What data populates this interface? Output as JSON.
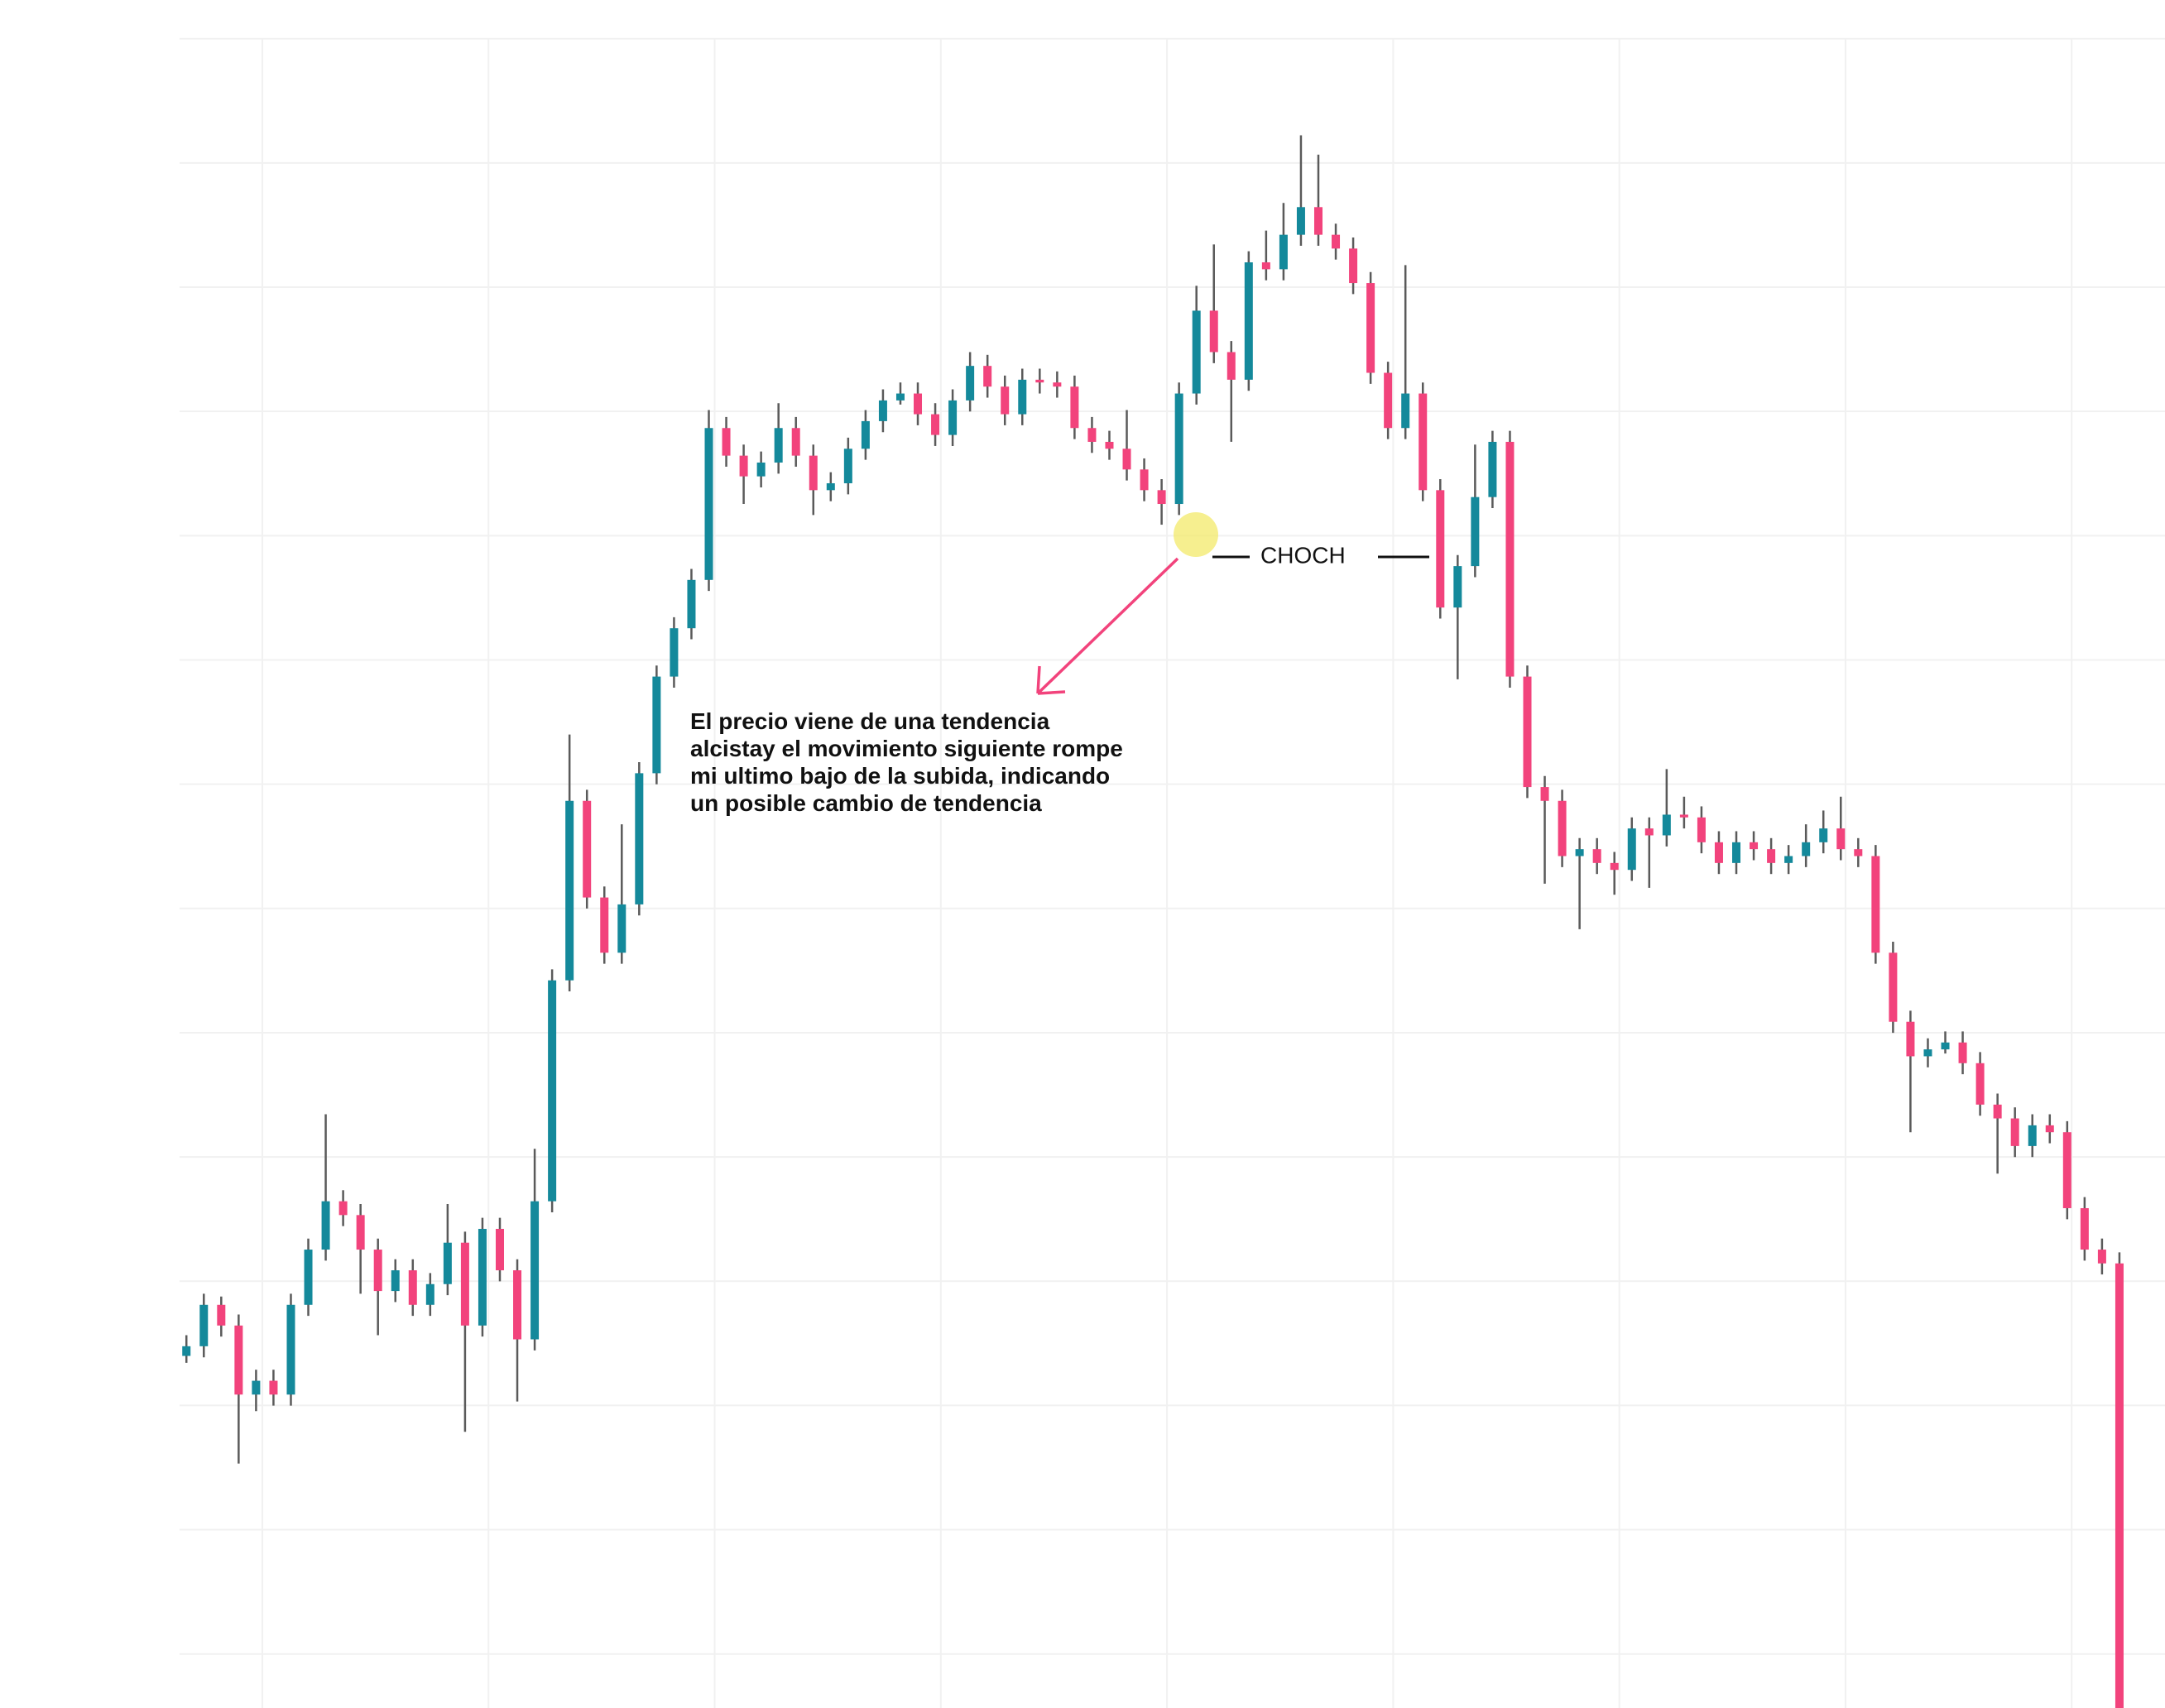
{
  "chart_data": {
    "type": "candlestick",
    "ylim": [
      0,
      1237
    ],
    "up_color": "#14899b",
    "down_color": "#f2437c",
    "wick_color": "#5a5a5a",
    "grid": true,
    "annotation_label": "CHOCH",
    "annotation_text": [
      "El precio viene de una tendencia",
      "alcistay el movimiento siguiente rompe",
      "mi ultimo bajo de la subida, indicando",
      "un posible cambio de tendencia"
    ],
    "candles": [
      [
        255,
        270,
        250,
        262
      ],
      [
        262,
        300,
        254,
        292
      ],
      [
        292,
        298,
        269,
        277
      ],
      [
        277,
        285,
        177,
        227
      ],
      [
        227,
        245,
        215,
        237
      ],
      [
        237,
        245,
        219,
        227
      ],
      [
        227,
        300,
        219,
        292
      ],
      [
        292,
        340,
        284,
        332
      ],
      [
        332,
        430,
        324,
        367
      ],
      [
        367,
        375,
        349,
        357
      ],
      [
        357,
        365,
        300,
        332
      ],
      [
        332,
        340,
        270,
        302
      ],
      [
        302,
        325,
        294,
        317
      ],
      [
        317,
        325,
        284,
        292
      ],
      [
        292,
        315,
        284,
        307
      ],
      [
        307,
        365,
        299,
        337
      ],
      [
        337,
        345,
        200,
        277
      ],
      [
        277,
        355,
        269,
        347
      ],
      [
        347,
        355,
        309,
        317
      ],
      [
        317,
        325,
        222,
        267
      ],
      [
        267,
        405,
        259,
        367
      ],
      [
        367,
        535,
        359,
        527
      ],
      [
        527,
        705,
        519,
        657
      ],
      [
        657,
        665,
        579,
        587
      ],
      [
        587,
        595,
        539,
        547
      ],
      [
        547,
        640,
        539,
        582
      ],
      [
        582,
        685,
        574,
        677
      ],
      [
        677,
        755,
        669,
        747
      ],
      [
        747,
        790,
        739,
        782
      ],
      [
        782,
        825,
        774,
        817
      ],
      [
        817,
        940,
        809,
        927
      ],
      [
        927,
        935,
        899,
        907
      ],
      [
        907,
        915,
        872,
        892
      ],
      [
        892,
        910,
        884,
        902
      ],
      [
        902,
        945,
        894,
        927
      ],
      [
        927,
        935,
        899,
        907
      ],
      [
        907,
        915,
        864,
        882
      ],
      [
        882,
        895,
        874,
        887
      ],
      [
        887,
        920,
        879,
        912
      ],
      [
        912,
        940,
        904,
        932
      ],
      [
        932,
        955,
        924,
        947
      ],
      [
        947,
        960,
        944,
        952
      ],
      [
        952,
        960,
        929,
        937
      ],
      [
        937,
        945,
        914,
        922
      ],
      [
        922,
        955,
        914,
        947
      ],
      [
        947,
        982,
        939,
        972
      ],
      [
        972,
        980,
        949,
        957
      ],
      [
        957,
        965,
        929,
        937
      ],
      [
        937,
        970,
        929,
        962
      ],
      [
        962,
        970,
        952,
        960
      ],
      [
        960,
        968,
        949,
        957
      ],
      [
        957,
        965,
        919,
        927
      ],
      [
        927,
        935,
        909,
        917
      ],
      [
        917,
        925,
        904,
        912
      ],
      [
        912,
        940,
        889,
        897
      ],
      [
        897,
        905,
        874,
        882
      ],
      [
        882,
        890,
        857,
        872
      ],
      [
        872,
        960,
        864,
        952
      ],
      [
        952,
        1030,
        944,
        1012
      ],
      [
        1012,
        1060,
        974,
        982
      ],
      [
        982,
        990,
        917,
        962
      ],
      [
        962,
        1055,
        954,
        1047
      ],
      [
        1047,
        1070,
        1034,
        1042
      ],
      [
        1042,
        1090,
        1034,
        1067
      ],
      [
        1067,
        1139,
        1059,
        1087
      ],
      [
        1087,
        1125,
        1059,
        1067
      ],
      [
        1067,
        1075,
        1049,
        1057
      ],
      [
        1057,
        1065,
        1024,
        1032
      ],
      [
        1032,
        1040,
        959,
        967
      ],
      [
        967,
        975,
        919,
        927
      ],
      [
        927,
        1045,
        919,
        952
      ],
      [
        952,
        960,
        874,
        882
      ],
      [
        882,
        890,
        789,
        797
      ],
      [
        797,
        835,
        745,
        827
      ],
      [
        827,
        915,
        819,
        877
      ],
      [
        877,
        925,
        869,
        917
      ],
      [
        917,
        925,
        739,
        747
      ],
      [
        747,
        755,
        659,
        667
      ],
      [
        667,
        675,
        597,
        657
      ],
      [
        657,
        665,
        609,
        617
      ],
      [
        617,
        630,
        564,
        622
      ],
      [
        622,
        630,
        604,
        612
      ],
      [
        612,
        620,
        589,
        607
      ],
      [
        607,
        645,
        599,
        637
      ],
      [
        637,
        645,
        594,
        632
      ],
      [
        632,
        680,
        624,
        647
      ],
      [
        647,
        660,
        637,
        645
      ],
      [
        645,
        653,
        619,
        627
      ],
      [
        627,
        635,
        604,
        612
      ],
      [
        612,
        635,
        604,
        627
      ],
      [
        627,
        635,
        614,
        622
      ],
      [
        622,
        630,
        604,
        612
      ],
      [
        612,
        625,
        604,
        617
      ],
      [
        617,
        640,
        609,
        627
      ],
      [
        627,
        650,
        619,
        637
      ],
      [
        637,
        660,
        614,
        622
      ],
      [
        622,
        630,
        609,
        617
      ],
      [
        617,
        625,
        539,
        547
      ],
      [
        547,
        555,
        489,
        497
      ],
      [
        497,
        505,
        417,
        472
      ],
      [
        472,
        485,
        464,
        477
      ],
      [
        477,
        490,
        474,
        482
      ],
      [
        482,
        490,
        459,
        467
      ],
      [
        467,
        475,
        429,
        437
      ],
      [
        437,
        445,
        387,
        427
      ],
      [
        427,
        435,
        399,
        407
      ],
      [
        407,
        430,
        399,
        422
      ],
      [
        422,
        430,
        409,
        417
      ],
      [
        417,
        425,
        354,
        362
      ],
      [
        362,
        370,
        324,
        332
      ],
      [
        332,
        340,
        314,
        322
      ],
      [
        322,
        330,
        0,
        0
      ]
    ]
  }
}
